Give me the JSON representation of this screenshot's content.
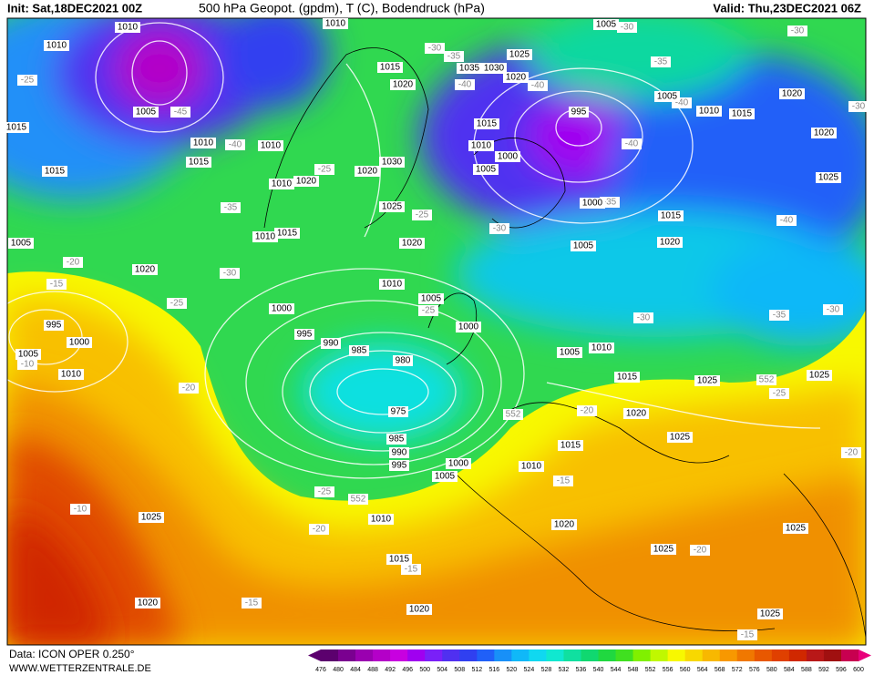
{
  "header": {
    "init": "Init: Sat,18DEC2021 00Z",
    "title": "500 hPa Geopot. (gpdm), T (C), Bodendruck (hPa)",
    "valid": "Valid: Thu,23DEC2021 06Z"
  },
  "footer": {
    "data": "Data: ICON OPER 0.250°",
    "site": "WWW.WETTERZENTRALE.DE"
  },
  "colorbar": {
    "ticks": [
      476,
      480,
      484,
      488,
      492,
      496,
      500,
      504,
      508,
      512,
      516,
      520,
      524,
      528,
      532,
      536,
      540,
      544,
      548,
      552,
      556,
      560,
      564,
      568,
      572,
      576,
      580,
      584,
      588,
      592,
      596,
      600
    ],
    "colors": [
      "#5c006e",
      "#7a0090",
      "#9a00b0",
      "#b400c8",
      "#c800e0",
      "#a000f0",
      "#7a20f8",
      "#5030f0",
      "#3040f0",
      "#2060f8",
      "#1890f8",
      "#10b8f8",
      "#10d8f0",
      "#10e8d0",
      "#10e0a0",
      "#10d870",
      "#20d840",
      "#40e020",
      "#80f000",
      "#c0f800",
      "#f8f800",
      "#f8d800",
      "#f8b800",
      "#f89800",
      "#f07800",
      "#e85800",
      "#e04000",
      "#d02800",
      "#b81818",
      "#a01010",
      "#c80050"
    ]
  },
  "map": {
    "pressure_labels": [
      "1010",
      "1010",
      "1010",
      "1005",
      "1025",
      "1035",
      "1030",
      "1015",
      "1020",
      "1020",
      "1005",
      "995",
      "1005",
      "1010",
      "1015",
      "1020",
      "1015",
      "1015",
      "1010",
      "1010",
      "1010",
      "1000",
      "1020",
      "1015",
      "1030",
      "1005",
      "1020",
      "1015",
      "1010",
      "1020",
      "1025",
      "1025",
      "1000",
      "1015",
      "1015",
      "1010",
      "1020",
      "1005",
      "1005",
      "1020",
      "1020",
      "1010",
      "1005",
      "1000",
      "995",
      "1000",
      "995",
      "990",
      "985",
      "980",
      "1000",
      "1005",
      "1010",
      "1005",
      "1010",
      "1015",
      "1025",
      "1025",
      "975",
      "1020",
      "1025",
      "985",
      "1015",
      "990",
      "995",
      "1000",
      "1010",
      "1005",
      "1010",
      "1020",
      "1025",
      "1025",
      "1025",
      "1015",
      "1020",
      "1020",
      "1025"
    ],
    "temp_labels": [
      "-25",
      "-45",
      "-40",
      "-35",
      "-30",
      "-25",
      "-20",
      "-15",
      "-10",
      "-20",
      "-25",
      "-20",
      "-10",
      "-15",
      "-15",
      "-15",
      "-20",
      "-20",
      "-15",
      "-20",
      "-25",
      "-30",
      "-35",
      "-30",
      "-40",
      "-40",
      "-40",
      "-35",
      "-30",
      "-30",
      "-30",
      "-30",
      "-35",
      "-40",
      "-40",
      "-35",
      "-30",
      "-25",
      "-25",
      "-25",
      "552",
      "552",
      "552"
    ]
  }
}
